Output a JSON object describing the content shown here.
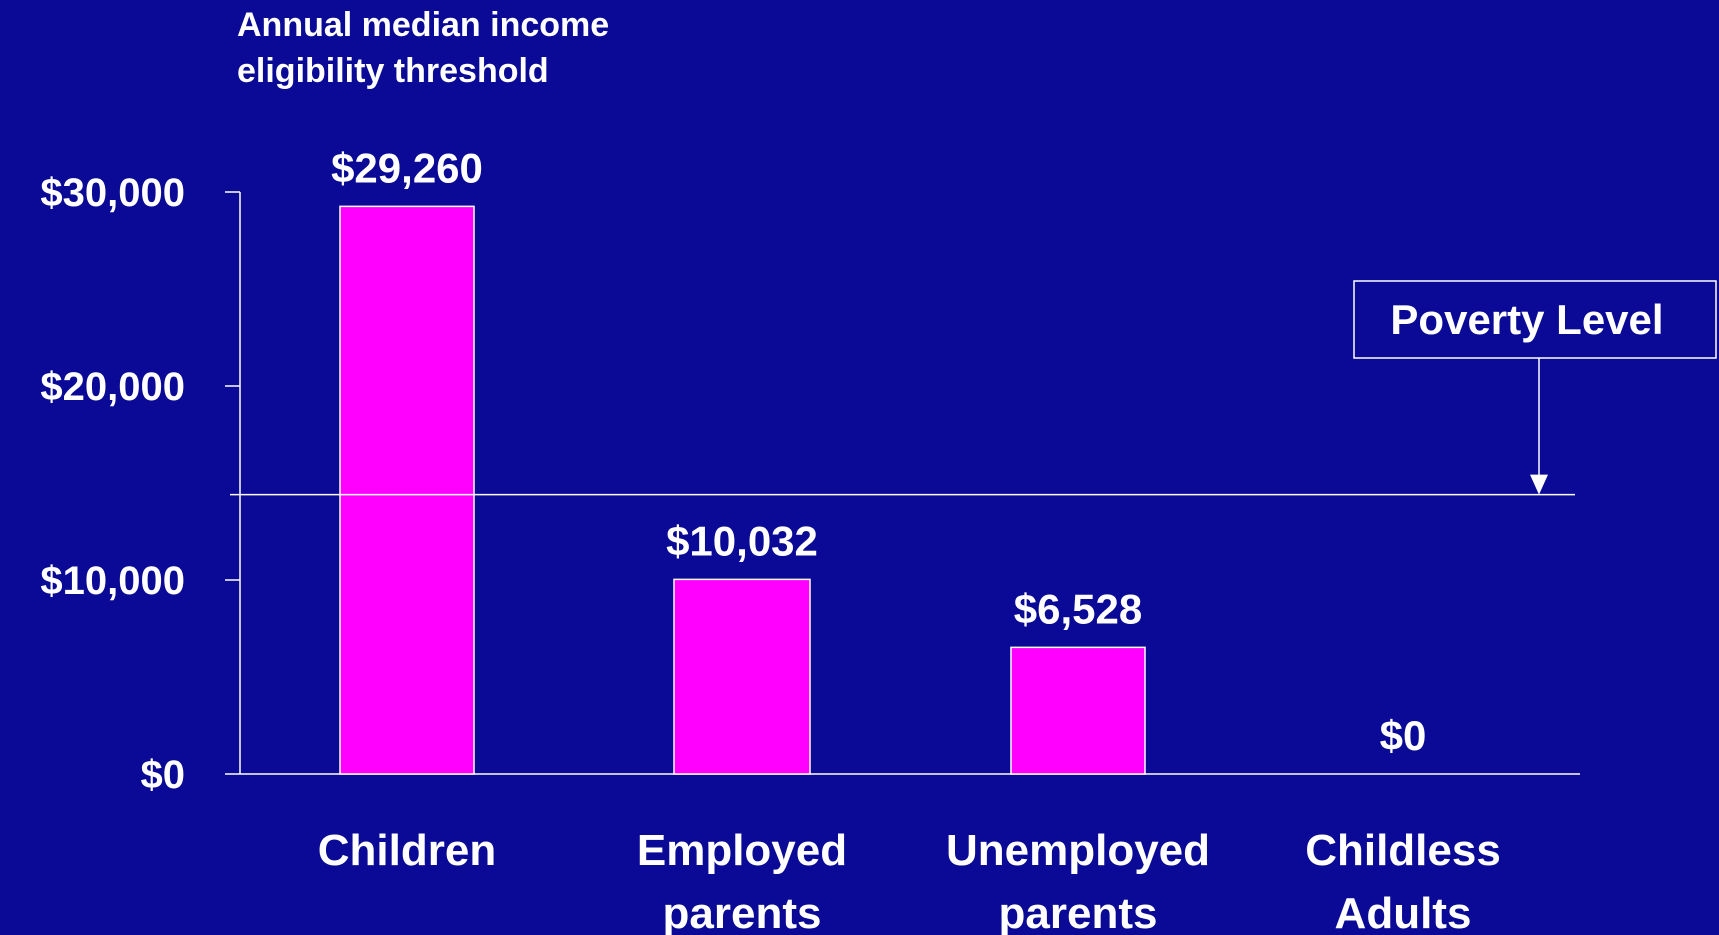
{
  "chart_data": {
    "type": "bar",
    "title": "Annual median income eligibility threshold",
    "title_lines": [
      "Annual median income",
      "eligibility threshold"
    ],
    "categories": [
      [
        "Children"
      ],
      [
        "Employed",
        "parents"
      ],
      [
        "Unemployed",
        "parents"
      ],
      [
        "Childless",
        "Adults"
      ]
    ],
    "values": [
      29260,
      10032,
      6528,
      0
    ],
    "data_labels": [
      "$29,260",
      "$10,032",
      "$6,528",
      "$0"
    ],
    "ylim": [
      0,
      30000
    ],
    "yticks": [
      0,
      10000,
      20000,
      30000
    ],
    "ytick_labels": [
      "$0",
      "$10,000",
      "$20,000",
      "$30,000"
    ],
    "reference_line": {
      "label": "Poverty Level",
      "value": 14400
    },
    "colors": {
      "background": "#0a0a96",
      "bar": "#ff00ff",
      "bar_outline": "#ffffff",
      "text": "#ffffff",
      "axis": "#ffffff"
    },
    "grid": false,
    "legend": "none"
  }
}
